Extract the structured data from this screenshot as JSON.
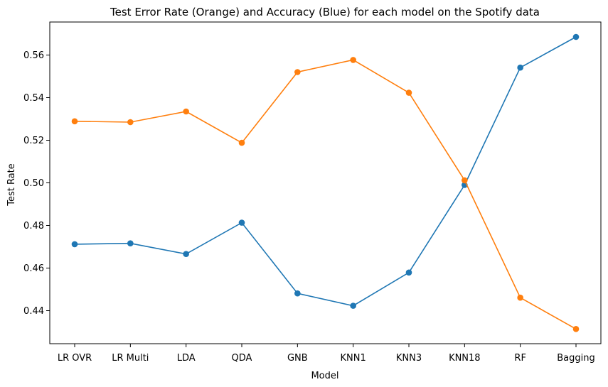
{
  "chart_data": {
    "type": "line",
    "title": "Test Error Rate (Orange) and Accuracy (Blue) for each model on the Spotify data",
    "xlabel": "Model",
    "ylabel": "Test Rate",
    "categories": [
      "LR OVR",
      "LR Multi",
      "LDA",
      "QDA",
      "GNB",
      "KNN1",
      "KNN3",
      "KNN18",
      "RF",
      "Bagging"
    ],
    "ylim": [
      0.4245,
      0.5755
    ],
    "yticks": [
      0.44,
      0.46,
      0.48,
      0.5,
      0.52,
      0.54,
      0.56
    ],
    "ytick_labels": [
      "0.44",
      "0.46",
      "0.48",
      "0.50",
      "0.52",
      "0.54",
      "0.56"
    ],
    "grid": false,
    "series": [
      {
        "color": "#1f77b4",
        "values": [
          0.4712,
          0.4716,
          0.4666,
          0.4813,
          0.4481,
          0.4423,
          0.4579,
          0.499,
          0.5541,
          0.5685
        ]
      },
      {
        "color": "#ff7f0e",
        "values": [
          0.5289,
          0.5285,
          0.5335,
          0.5188,
          0.552,
          0.5577,
          0.5423,
          0.5012,
          0.4461,
          0.4314
        ]
      }
    ]
  }
}
